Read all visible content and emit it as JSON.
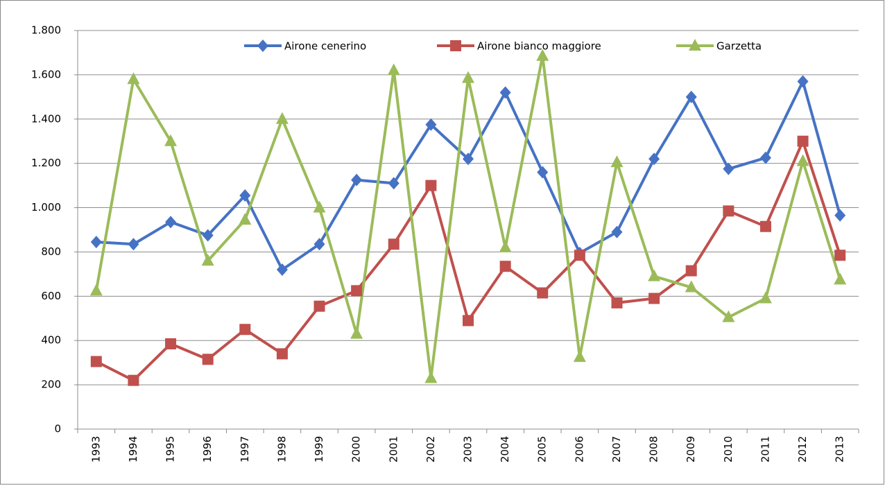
{
  "chart_data": {
    "type": "line",
    "categories": [
      "1993",
      "1994",
      "1995",
      "1996",
      "1997",
      "1998",
      "1999",
      "2000",
      "2001",
      "2002",
      "2003",
      "2004",
      "2005",
      "2006",
      "2007",
      "2008",
      "2009",
      "2010",
      "2011",
      "2012",
      "2013"
    ],
    "series": [
      {
        "name": "Airone cenerino",
        "color": "#4572c4",
        "marker": "diamond",
        "values": [
          845,
          835,
          935,
          875,
          1055,
          720,
          835,
          1125,
          1110,
          1375,
          1220,
          1520,
          1160,
          795,
          890,
          1220,
          1500,
          1175,
          1225,
          1570,
          965
        ]
      },
      {
        "name": "Airone bianco maggiore",
        "color": "#c0504d",
        "marker": "square",
        "values": [
          305,
          220,
          385,
          315,
          450,
          340,
          555,
          625,
          835,
          1100,
          490,
          735,
          615,
          785,
          570,
          590,
          715,
          985,
          915,
          1300,
          785
        ]
      },
      {
        "name": "Garzetta",
        "color": "#9bbb59",
        "marker": "triangle",
        "values": [
          625,
          1580,
          1300,
          760,
          945,
          1400,
          1000,
          430,
          1620,
          230,
          1585,
          820,
          1685,
          325,
          1205,
          690,
          640,
          505,
          590,
          1210,
          675
        ]
      }
    ],
    "ylim": [
      0,
      1800
    ],
    "yticks": [
      0,
      200,
      400,
      600,
      800,
      {
        "value": 1000,
        "label": "1.000"
      },
      {
        "value": 1200,
        "label": "1.200"
      },
      {
        "value": 1400,
        "label": "1.400"
      },
      {
        "value": 1600,
        "label": "1.600"
      },
      {
        "value": 1800,
        "label": "1.800"
      }
    ],
    "grid": true
  }
}
